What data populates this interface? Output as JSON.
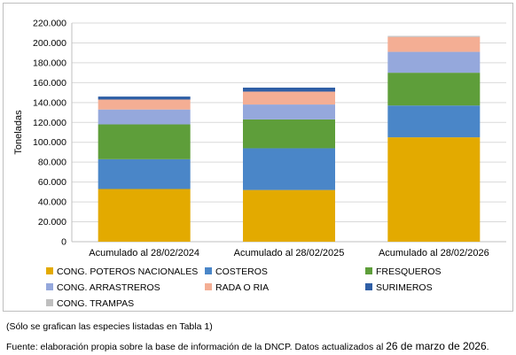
{
  "chart_data": {
    "type": "stacked_bar",
    "ylabel": "Toneladas",
    "ylim": [
      0,
      220000
    ],
    "ytick_step": 20000,
    "ytick_labels": [
      "0",
      "20.000",
      "40.000",
      "60.000",
      "80.000",
      "100.000",
      "120.000",
      "140.000",
      "160.000",
      "180.000",
      "200.000",
      "220.000"
    ],
    "grid": true,
    "legend_position": "bottom",
    "categories": [
      "Acumulado al 28/02/2024",
      "Acumulado al 28/02/2025",
      "Acumulado al 28/02/2026"
    ],
    "series": [
      {
        "name": "CONG. POTEROS NACIONALES",
        "color": "#E3AA00",
        "values": [
          53000,
          52000,
          105000
        ]
      },
      {
        "name": "COSTEROS",
        "color": "#4A86C8",
        "values": [
          30000,
          42000,
          32000
        ]
      },
      {
        "name": "FRESQUEROS",
        "color": "#5E9E3A",
        "values": [
          35000,
          29000,
          33000
        ]
      },
      {
        "name": "CONG. ARRASTREROS",
        "color": "#95A8DC",
        "values": [
          15000,
          15000,
          21000
        ]
      },
      {
        "name": "RADA O RIA",
        "color": "#F4AE94",
        "values": [
          10000,
          13000,
          15000
        ]
      },
      {
        "name": "SURIMEROS",
        "color": "#2F5FA6",
        "values": [
          3000,
          4000,
          0
        ]
      },
      {
        "name": "CONG. TRAMPAS",
        "color": "#BFBFBF",
        "values": [
          0,
          0,
          1000
        ]
      }
    ]
  },
  "notes": {
    "line1": "(Sólo se grafican las especies listadas en Tabla 1)",
    "line2_prefix": "Fuente: elaboración propia sobre la base de información de la DNCP. Datos actualizados al ",
    "line2_date": "26 de marzo de 2026",
    "line2_suffix": "."
  }
}
